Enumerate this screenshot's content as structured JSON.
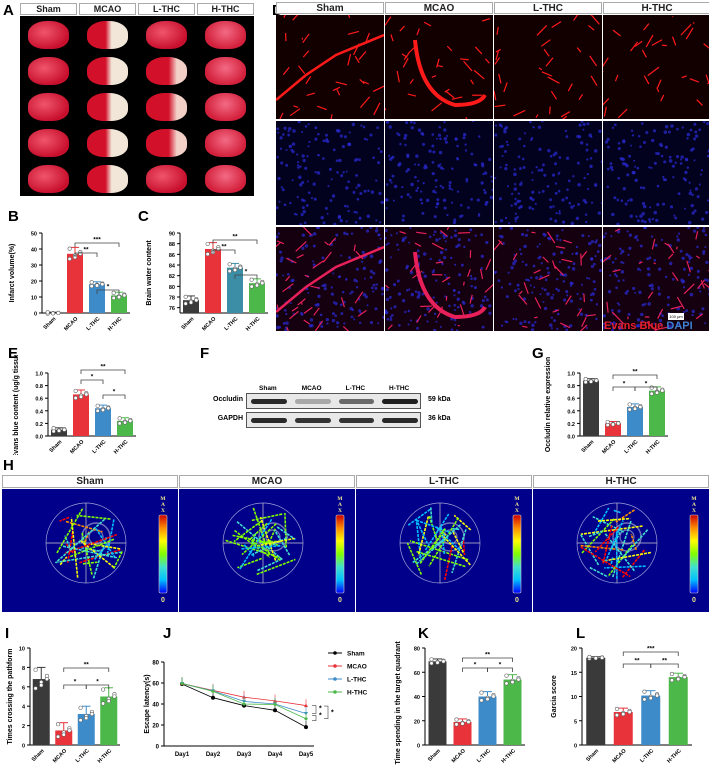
{
  "groups": [
    "Sham",
    "MCAO",
    "L-THC",
    "H-THC"
  ],
  "colors": {
    "Sham": "#3a3a3a",
    "MCAO": "#e8333a",
    "L-THC": "#3d8bc8",
    "H-THC": "#4cb84a",
    "LTHC_C": "#3b8ea5"
  },
  "panels": {
    "A": {
      "letter": "A",
      "headers": [
        "Sham",
        "MCAO",
        "L-THC",
        "H-THC"
      ]
    },
    "B": {
      "letter": "B"
    },
    "C": {
      "letter": "C"
    },
    "D": {
      "letter": "D",
      "headers": [
        "Sham",
        "MCAO",
        "L-THC",
        "H-THC"
      ],
      "scale_bar": "100 μm",
      "legend_red": "Evans Blue",
      "legend_blue": "DAPI"
    },
    "E": {
      "letter": "E"
    },
    "F": {
      "letter": "F",
      "lanes": [
        "Sham",
        "MCAO",
        "L-THC",
        "H-THC"
      ],
      "rows": [
        {
          "label": "Occludin",
          "kda": "59 kDa"
        },
        {
          "label": "GAPDH",
          "kda": "36 kDa"
        }
      ]
    },
    "G": {
      "letter": "G"
    },
    "H": {
      "letter": "H",
      "headers": [
        "Sham",
        "MCAO",
        "L-THC",
        "H-THC"
      ],
      "colorbar_max": "MAX",
      "colorbar_min": "0"
    },
    "I": {
      "letter": "I"
    },
    "J": {
      "letter": "J"
    },
    "K": {
      "letter": "K"
    },
    "L": {
      "letter": "L"
    }
  },
  "chart_data": [
    {
      "panel": "B",
      "type": "bar",
      "categories": [
        "Sham",
        "MCAO",
        "L-THC",
        "H-THC"
      ],
      "values": [
        0,
        37,
        18,
        11
      ],
      "errors": [
        0.5,
        4,
        1.5,
        2
      ],
      "ylabel": "Infarct volume(%)",
      "ylim": [
        0,
        50
      ],
      "yticks": [
        0,
        10,
        20,
        30,
        40,
        50
      ],
      "significance": [
        {
          "pair": [
            "MCAO",
            "L-THC"
          ],
          "label": "**"
        },
        {
          "pair": [
            "MCAO",
            "H-THC"
          ],
          "label": "***"
        },
        {
          "pair": [
            "L-THC",
            "H-THC"
          ],
          "label": "*"
        }
      ]
    },
    {
      "panel": "C",
      "type": "bar",
      "categories": [
        "Sham",
        "MCAO",
        "L-THC",
        "H-THC"
      ],
      "values": [
        77.4,
        87.0,
        83.5,
        80.6
      ],
      "errors": [
        0.8,
        1.2,
        0.8,
        0.8
      ],
      "ylabel": "Brain water content",
      "ylim": [
        75,
        90
      ],
      "yticks": [
        76,
        78,
        80,
        82,
        84,
        86,
        88,
        90
      ],
      "significance": [
        {
          "pair": [
            "MCAO",
            "L-THC"
          ],
          "label": "**"
        },
        {
          "pair": [
            "MCAO",
            "H-THC"
          ],
          "label": "**"
        },
        {
          "pair": [
            "L-THC",
            "H-THC"
          ],
          "label": "*"
        }
      ]
    },
    {
      "panel": "E",
      "type": "bar",
      "categories": [
        "Sham",
        "MCAO",
        "L-THC",
        "H-THC"
      ],
      "values": [
        0.1,
        0.66,
        0.44,
        0.24
      ],
      "errors": [
        0.03,
        0.07,
        0.05,
        0.05
      ],
      "ylabel": "Evans blue content (ug/g tissue)",
      "ylim": [
        0,
        1.0
      ],
      "yticks": [
        0.0,
        0.2,
        0.4,
        0.6,
        0.8,
        1.0
      ],
      "significance": [
        {
          "pair": [
            "MCAO",
            "L-THC"
          ],
          "label": "*"
        },
        {
          "pair": [
            "MCAO",
            "H-THC"
          ],
          "label": "**"
        },
        {
          "pair": [
            "L-THC",
            "H-THC"
          ],
          "label": "*"
        }
      ]
    },
    {
      "panel": "G",
      "type": "bar",
      "categories": [
        "Sham",
        "MCAO",
        "L-THC",
        "H-THC"
      ],
      "values": [
        0.88,
        0.2,
        0.46,
        0.72
      ],
      "errors": [
        0.03,
        0.03,
        0.05,
        0.06
      ],
      "ylabel": "Occludin relative expression",
      "ylim": [
        0,
        1.0
      ],
      "yticks": [
        0.0,
        0.2,
        0.4,
        0.6,
        0.8,
        1.0
      ],
      "significance": [
        {
          "pair": [
            "MCAO",
            "L-THC"
          ],
          "label": "*"
        },
        {
          "pair": [
            "MCAO",
            "H-THC"
          ],
          "label": "**"
        },
        {
          "pair": [
            "L-THC",
            "H-THC"
          ],
          "label": "*"
        }
      ]
    },
    {
      "panel": "I",
      "type": "bar",
      "categories": [
        "Sham",
        "MCAO",
        "L-THC",
        "H-THC"
      ],
      "values": [
        6.8,
        1.5,
        3.2,
        5.0
      ],
      "errors": [
        1.2,
        0.8,
        0.8,
        0.9
      ],
      "ylabel": "Times crossing the pathform",
      "ylim": [
        0,
        10
      ],
      "yticks": [
        0,
        2,
        4,
        6,
        8,
        10
      ],
      "significance": [
        {
          "pair": [
            "MCAO",
            "L-THC"
          ],
          "label": "*"
        },
        {
          "pair": [
            "MCAO",
            "H-THC"
          ],
          "label": "**"
        },
        {
          "pair": [
            "L-THC",
            "H-THC"
          ],
          "label": "*"
        }
      ]
    },
    {
      "panel": "J",
      "type": "line",
      "x": [
        "Day1",
        "Day2",
        "Day3",
        "Day4",
        "Day5"
      ],
      "series": [
        {
          "name": "Sham",
          "values": [
            59,
            46,
            38.5,
            34,
            18
          ],
          "color": "#000000",
          "marker": "circle"
        },
        {
          "name": "MCAO",
          "values": [
            59.5,
            53,
            46.5,
            43,
            38.5
          ],
          "color": "#e8333a",
          "marker": "triangle-up"
        },
        {
          "name": "L-THC",
          "values": [
            59.5,
            52.5,
            42.5,
            40,
            31
          ],
          "color": "#3d8bc8",
          "marker": "triangle-down"
        },
        {
          "name": "H-THC",
          "values": [
            59.5,
            52,
            40,
            39.5,
            26
          ],
          "color": "#4cb84a",
          "marker": "diamond"
        }
      ],
      "ylabel": "Escape latency(s)",
      "ylim": [
        0,
        80
      ],
      "yticks": [
        0,
        20,
        40,
        60,
        80
      ],
      "legend_position": "right",
      "significance": [
        "*",
        "*",
        "*"
      ]
    },
    {
      "panel": "K",
      "type": "bar",
      "categories": [
        "Sham",
        "MCAO",
        "L-THC",
        "H-THC"
      ],
      "values": [
        69,
        19,
        40,
        54
      ],
      "errors": [
        2,
        2.5,
        4,
        4
      ],
      "ylabel": "Time spending in the target quadrant (%)",
      "ylim": [
        0,
        80
      ],
      "yticks": [
        0,
        20,
        40,
        60,
        80
      ],
      "significance": [
        {
          "pair": [
            "MCAO",
            "L-THC"
          ],
          "label": "*"
        },
        {
          "pair": [
            "MCAO",
            "H-THC"
          ],
          "label": "**"
        },
        {
          "pair": [
            "L-THC",
            "H-THC"
          ],
          "label": "*"
        }
      ]
    },
    {
      "panel": "L",
      "type": "bar",
      "categories": [
        "Sham",
        "MCAO",
        "L-THC",
        "H-THC"
      ],
      "values": [
        18,
        6.8,
        10.2,
        14
      ],
      "errors": [
        0.2,
        0.8,
        1.0,
        0.8
      ],
      "ylabel": "Garcia score",
      "ylim": [
        0,
        20
      ],
      "yticks": [
        0,
        5,
        10,
        15,
        20
      ],
      "significance": [
        {
          "pair": [
            "MCAO",
            "L-THC"
          ],
          "label": "**"
        },
        {
          "pair": [
            "MCAO",
            "H-THC"
          ],
          "label": "***"
        },
        {
          "pair": [
            "L-THC",
            "H-THC"
          ],
          "label": "**"
        }
      ]
    }
  ]
}
